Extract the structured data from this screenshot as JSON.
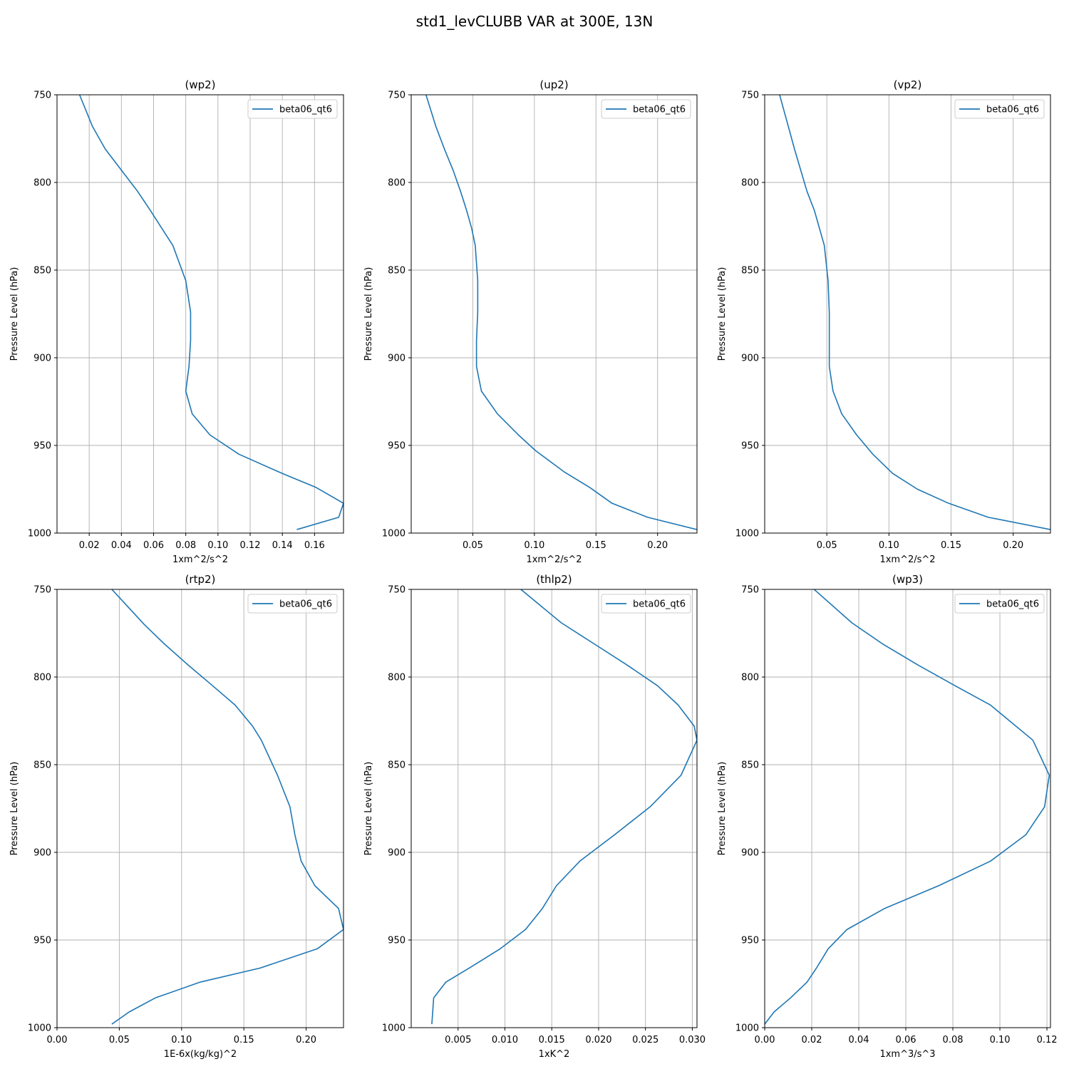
{
  "figure": {
    "title": "std1_levCLUBB VAR at 300E, 13N"
  },
  "colors": {
    "series": "#1f77b4",
    "grid": "#b0b0b0",
    "axes": "#000000"
  },
  "chart_data": [
    {
      "type": "line",
      "title": "(wp2)",
      "xlabel": "1xm^2/s^2",
      "ylabel": "Pressure Level (hPa)",
      "xlim": [
        0.0,
        0.178
      ],
      "ylim": [
        1000,
        750
      ],
      "xticks": [
        0.02,
        0.04,
        0.06,
        0.08,
        0.1,
        0.12,
        0.14,
        0.16
      ],
      "xtick_labels": [
        "0.02",
        "0.04",
        "0.06",
        "0.08",
        "0.10",
        "0.12",
        "0.14",
        "0.16"
      ],
      "yticks": [
        750,
        800,
        850,
        900,
        950,
        1000
      ],
      "ytick_labels": [
        "750",
        "800",
        "850",
        "900",
        "950",
        "1000"
      ],
      "grid": true,
      "legend": "top-right",
      "series": [
        {
          "name": "beta06_qt6",
          "x": [
            0.014,
            0.022,
            0.03,
            0.04,
            0.05,
            0.058,
            0.065,
            0.072,
            0.08,
            0.083,
            0.083,
            0.082,
            0.081,
            0.08,
            0.084,
            0.095,
            0.113,
            0.14,
            0.161,
            0.178,
            0.175,
            0.149
          ],
          "y": [
            750,
            768,
            781,
            793,
            805,
            816,
            826,
            836,
            856,
            874,
            890,
            905,
            912,
            919,
            932,
            944,
            955,
            966,
            974,
            983,
            991,
            998
          ]
        }
      ]
    },
    {
      "type": "line",
      "title": "(up2)",
      "xlabel": "1xm^2/s^2",
      "ylabel": "Pressure Level (hPa)",
      "xlim": [
        0.0,
        0.232
      ],
      "ylim": [
        1000,
        750
      ],
      "xticks": [
        0.05,
        0.1,
        0.15,
        0.2
      ],
      "xtick_labels": [
        "0.05",
        "0.10",
        "0.15",
        "0.20"
      ],
      "yticks": [
        750,
        800,
        850,
        900,
        950,
        1000
      ],
      "ytick_labels": [
        "750",
        "800",
        "850",
        "900",
        "950",
        "1000"
      ],
      "grid": true,
      "legend": "top-right",
      "series": [
        {
          "name": "beta06_qt6",
          "x": [
            0.012,
            0.02,
            0.027,
            0.034,
            0.04,
            0.045,
            0.049,
            0.052,
            0.054,
            0.054,
            0.053,
            0.053,
            0.057,
            0.07,
            0.087,
            0.101,
            0.124,
            0.145,
            0.163,
            0.192,
            0.232
          ],
          "y": [
            750,
            768,
            781,
            793,
            805,
            816,
            826,
            836,
            856,
            874,
            890,
            905,
            919,
            932,
            944,
            953,
            965,
            974,
            983,
            991,
            998
          ]
        }
      ]
    },
    {
      "type": "line",
      "title": "(vp2)",
      "xlabel": "1xm^2/s^2",
      "ylabel": "Pressure Level (hPa)",
      "xlim": [
        0.0,
        0.23
      ],
      "ylim": [
        1000,
        750
      ],
      "xticks": [
        0.05,
        0.1,
        0.15,
        0.2
      ],
      "xtick_labels": [
        "0.05",
        "0.10",
        "0.15",
        "0.20"
      ],
      "yticks": [
        750,
        800,
        850,
        900,
        950,
        1000
      ],
      "ytick_labels": [
        "750",
        "800",
        "850",
        "900",
        "950",
        "1000"
      ],
      "grid": true,
      "legend": "top-right",
      "series": [
        {
          "name": "beta06_qt6",
          "x": [
            0.012,
            0.019,
            0.024,
            0.029,
            0.034,
            0.04,
            0.044,
            0.048,
            0.051,
            0.052,
            0.052,
            0.052,
            0.055,
            0.062,
            0.074,
            0.087,
            0.103,
            0.123,
            0.148,
            0.18,
            0.23
          ],
          "y": [
            750,
            768,
            781,
            793,
            805,
            816,
            826,
            836,
            856,
            874,
            890,
            905,
            919,
            932,
            944,
            955,
            966,
            975,
            983,
            991,
            998
          ]
        }
      ]
    },
    {
      "type": "line",
      "title": "(rtp2)",
      "xlabel": "1E-6x(kg/kg)^2",
      "ylabel": "Pressure Level (hPa)",
      "xlim": [
        0.0,
        0.23
      ],
      "ylim": [
        1000,
        750
      ],
      "xticks": [
        0.0,
        0.05,
        0.1,
        0.15,
        0.2
      ],
      "xtick_labels": [
        "0.00",
        "0.05",
        "0.10",
        "0.15",
        "0.20"
      ],
      "yticks": [
        750,
        800,
        850,
        900,
        950,
        1000
      ],
      "ytick_labels": [
        "750",
        "800",
        "850",
        "900",
        "950",
        "1000"
      ],
      "grid": true,
      "legend": "top-right",
      "series": [
        {
          "name": "beta06_qt6",
          "x": [
            0.044,
            0.057,
            0.07,
            0.086,
            0.105,
            0.125,
            0.143,
            0.157,
            0.164,
            0.177,
            0.187,
            0.191,
            0.196,
            0.207,
            0.226,
            0.23,
            0.209,
            0.163,
            0.115,
            0.079,
            0.058,
            0.044
          ],
          "y": [
            750,
            760,
            770,
            781,
            793,
            805,
            816,
            828,
            836,
            856,
            874,
            890,
            905,
            919,
            932,
            944,
            955,
            966,
            974,
            983,
            991,
            998
          ]
        }
      ]
    },
    {
      "type": "line",
      "title": "(thlp2)",
      "xlabel": "1xK^2",
      "ylabel": "Pressure Level (hPa)",
      "xlim": [
        0.0,
        0.0305
      ],
      "ylim": [
        1000,
        750
      ],
      "xticks": [
        0.005,
        0.01,
        0.015,
        0.02,
        0.025,
        0.03
      ],
      "xtick_labels": [
        "0.005",
        "0.010",
        "0.015",
        "0.020",
        "0.025",
        "0.030"
      ],
      "yticks": [
        750,
        800,
        850,
        900,
        950,
        1000
      ],
      "ytick_labels": [
        "750",
        "800",
        "850",
        "900",
        "950",
        "1000"
      ],
      "grid": true,
      "legend": "top-right",
      "series": [
        {
          "name": "beta06_qt6",
          "x": [
            0.0117,
            0.016,
            0.0195,
            0.023,
            0.0263,
            0.0285,
            0.0302,
            0.0305,
            0.0288,
            0.0255,
            0.0217,
            0.018,
            0.0155,
            0.014,
            0.0122,
            0.0095,
            0.0062,
            0.0037,
            0.0024,
            0.0022
          ],
          "y": [
            750,
            769,
            781,
            793,
            805,
            816,
            828,
            836,
            856,
            874,
            890,
            905,
            919,
            932,
            944,
            955,
            966,
            974,
            983,
            998
          ]
        }
      ]
    },
    {
      "type": "line",
      "title": "(wp3)",
      "xlabel": "1xm^3/s^3",
      "ylabel": "Pressure Level (hPa)",
      "xlim": [
        0.0,
        0.1215
      ],
      "ylim": [
        1000,
        750
      ],
      "xticks": [
        0.0,
        0.02,
        0.04,
        0.06,
        0.08,
        0.1,
        0.12
      ],
      "xtick_labels": [
        "0.00",
        "0.02",
        "0.04",
        "0.06",
        "0.08",
        "0.10",
        "0.12"
      ],
      "yticks": [
        750,
        800,
        850,
        900,
        950,
        1000
      ],
      "ytick_labels": [
        "750",
        "800",
        "850",
        "900",
        "950",
        "1000"
      ],
      "grid": true,
      "legend": "top-right",
      "series": [
        {
          "name": "beta06_qt6",
          "x": [
            0.021,
            0.037,
            0.05,
            0.065,
            0.081,
            0.096,
            0.114,
            0.121,
            0.119,
            0.111,
            0.096,
            0.074,
            0.051,
            0.035,
            0.027,
            0.022,
            0.018,
            0.011,
            0.004,
            0.0
          ],
          "y": [
            750,
            769,
            781,
            793,
            805,
            816,
            836,
            856,
            874,
            890,
            905,
            919,
            932,
            944,
            955,
            966,
            974,
            983,
            991,
            998
          ]
        }
      ]
    }
  ]
}
